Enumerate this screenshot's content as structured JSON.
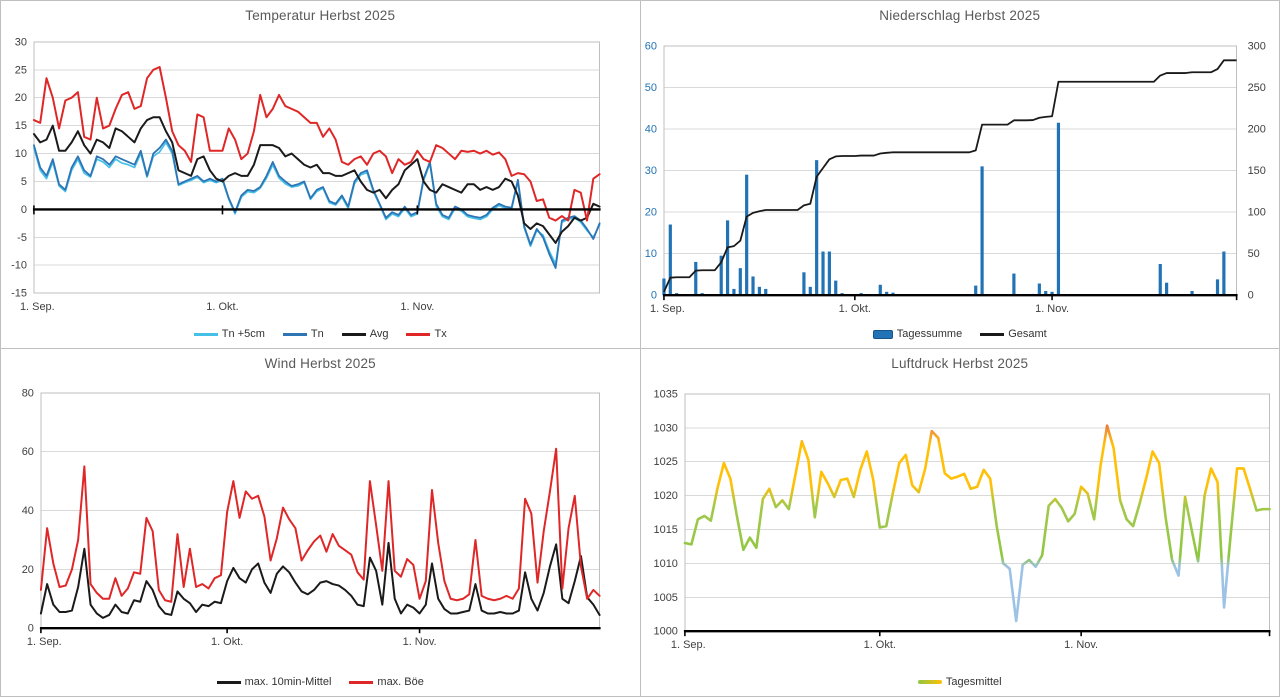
{
  "panels": {
    "temperature": {
      "title": "Temperatur Herbst 2025"
    },
    "precipitation": {
      "title": "Niederschlag Herbst 2025"
    },
    "wind": {
      "title": "Wind Herbst 2025"
    },
    "pressure": {
      "title": "Luftdruck Herbst 2025"
    }
  },
  "colors": {
    "tn5": "#45C1E8",
    "tn": "#2E75B6",
    "avg": "#1A1A1A",
    "tx": "#DF2727",
    "bar_blue": "#2273B5",
    "gesamt": "#1A1A1A",
    "wind_mean": "#1A1A1A",
    "wind_gust": "#DF2727",
    "pressure_green": "#8FC742",
    "pressure_yellow": "#FFC007",
    "pressure_blue": "#9CC2E5",
    "pressure_red": "#E2532F",
    "grid_line": "#D9D9D9",
    "spine": "#BFBFBF",
    "axis": "#000000",
    "axis_label": "#404040",
    "title_gray": "#595959"
  },
  "chart_data": [
    {
      "type": "line",
      "title": "Temperatur Herbst 2025",
      "n_days": 91,
      "ylim": [
        -15,
        30
      ],
      "ystep": 5,
      "axis_at": 0,
      "grid": true,
      "legend_position": "bottom",
      "x_tick_labels": [
        "1. Sep.",
        "1. Okt.",
        "1. Nov."
      ],
      "x_label_days": [
        0,
        30,
        61
      ],
      "x_tick_days": [
        0,
        30,
        61
      ],
      "series": [
        {
          "name": "Tn +5cm",
          "color": "#45C1E8",
          "width": 1.7,
          "values": [
            11,
            7,
            5.5,
            8.5,
            4.2,
            3.2,
            7,
            9,
            6.5,
            5.8,
            9,
            8.5,
            7.5,
            9,
            8.3,
            8,
            7.5,
            10,
            5.8,
            9.5,
            10.3,
            12,
            10,
            4.3,
            4.8,
            5.2,
            5.8,
            4.8,
            5.2,
            4.8,
            5.2,
            1.8,
            -0.8,
            2.2,
            3.2,
            3,
            3.8,
            5.6,
            8,
            5.6,
            4.6,
            4,
            4.2,
            4.8,
            1.8,
            3.2,
            3.8,
            1.2,
            0.8,
            2.2,
            0.2,
            4.6,
            6.2,
            6.6,
            3.2,
            0.8,
            -1.8,
            -0.8,
            -1.3,
            0.2,
            -1.3,
            -0.8,
            5.2,
            8.2,
            0.6,
            -1.3,
            -1.8,
            0.2,
            -0.3,
            -1.3,
            -1.6,
            -1.8,
            -1.3,
            0,
            0.7,
            0.2,
            0,
            5,
            -3.3,
            -6.6,
            -3.8,
            -4.6,
            -7.5,
            -9.8,
            -2.3,
            -1.8,
            -1.5,
            -2.3,
            -3.8,
            -5,
            -2.8
          ]
        },
        {
          "name": "Tn",
          "color": "#2E75B6",
          "width": 1.8,
          "values": [
            11.5,
            7.5,
            6,
            9,
            4.5,
            3.5,
            7.5,
            9.5,
            7,
            6,
            9.5,
            9,
            8,
            9.5,
            9,
            8.5,
            8,
            10.5,
            6,
            10,
            11,
            12.5,
            10.5,
            4.5,
            5,
            5.5,
            6,
            5,
            5.5,
            5,
            5.5,
            2,
            -0.5,
            2.5,
            3.5,
            3.3,
            4,
            6,
            8.5,
            6,
            5,
            4.2,
            4.5,
            5,
            2,
            3.5,
            4,
            1.5,
            1,
            2.5,
            0.5,
            5,
            6.5,
            7,
            3.5,
            1,
            -1.5,
            -0.5,
            -1,
            0.5,
            -1,
            -0.5,
            5.5,
            8.5,
            1,
            -1,
            -1.5,
            0.5,
            0,
            -1,
            -1.3,
            -1.5,
            -1,
            0.3,
            1,
            0.5,
            0.3,
            5.3,
            -3,
            -6.3,
            -3.5,
            -5,
            -8,
            -10.5,
            -2,
            -1.5,
            -1.2,
            -2,
            -3.5,
            -5.3,
            -2.5
          ]
        },
        {
          "name": "Avg",
          "color": "#1A1A1A",
          "width": 2,
          "values": [
            13.5,
            12,
            12.5,
            15,
            10.5,
            10.5,
            12,
            14,
            11.5,
            10,
            12.5,
            12,
            11,
            14.5,
            14,
            13,
            12,
            14.5,
            16,
            16.5,
            16.5,
            14,
            12,
            7,
            6.5,
            6,
            9,
            9.5,
            7,
            5.5,
            5,
            6,
            6.5,
            6,
            6,
            8,
            11.5,
            11.5,
            11.5,
            11,
            9.5,
            10,
            9,
            8,
            7.5,
            8,
            6.5,
            6.5,
            6,
            6,
            6.5,
            7,
            5,
            3.5,
            3,
            3.5,
            2,
            3.5,
            4.5,
            7,
            8,
            9,
            5,
            3.5,
            3,
            4.5,
            4,
            3.5,
            3,
            4.5,
            4.5,
            3.5,
            4,
            3.5,
            4,
            5.5,
            5,
            2.5,
            -2.5,
            -3.5,
            -2.5,
            -3,
            -4.5,
            -6,
            -4,
            -3,
            -1.5,
            -2,
            -1.5,
            1,
            0.5
          ]
        },
        {
          "name": "Tx",
          "color": "#DF2727",
          "width": 2,
          "values": [
            16,
            15.5,
            23.5,
            20,
            14.5,
            19.5,
            20,
            21,
            13,
            12.5,
            20,
            14.5,
            15,
            18,
            20.5,
            21,
            18,
            18.5,
            23.5,
            25,
            25.5,
            20,
            14,
            11.5,
            10.5,
            8.5,
            17,
            16.5,
            10.5,
            10.5,
            10.5,
            14.5,
            12.5,
            9,
            10,
            14,
            20.5,
            16.5,
            18,
            20.5,
            18.5,
            18,
            17.5,
            16.5,
            15.5,
            15.5,
            13,
            14.5,
            12.5,
            8.5,
            8,
            9,
            9.5,
            8,
            10,
            10.5,
            9.5,
            6.5,
            9,
            8,
            8.5,
            10.5,
            9,
            8.5,
            11.5,
            11,
            10,
            9,
            10.5,
            10.3,
            10.5,
            10,
            10.5,
            9.8,
            10.2,
            9,
            6,
            6.5,
            6.3,
            5,
            1.5,
            1.8,
            -1.5,
            -2,
            -1.2,
            -2,
            3.5,
            3,
            -2,
            5.5,
            6.3
          ]
        }
      ],
      "legend": [
        {
          "label": "Tn +5cm",
          "swatch": "line",
          "color": "#45C1E8"
        },
        {
          "label": "Tn",
          "swatch": "line",
          "color": "#2E75B6"
        },
        {
          "label": "Avg",
          "swatch": "line",
          "color": "#1A1A1A"
        },
        {
          "label": "Tx",
          "swatch": "line",
          "color": "#DF2727"
        }
      ]
    },
    {
      "type": "bar-line",
      "title": "Niederschlag Herbst 2025",
      "n_days": 91,
      "ylim": [
        0,
        60
      ],
      "ystep": 10,
      "axis_at": 0,
      "ylim_right": [
        0,
        300
      ],
      "ystep_right": 50,
      "yaxis_color": "#2273B5",
      "grid": true,
      "legend_position": "bottom",
      "x_tick_labels": [
        "1. Sep.",
        "1. Okt.",
        "1. Nov."
      ],
      "x_label_days": [
        0,
        30,
        61
      ],
      "x_tick_days": [
        0,
        30,
        61,
        90
      ],
      "bars": {
        "name": "Tagessumme",
        "color": "#2273B5",
        "values": [
          4,
          17,
          0.5,
          0,
          0,
          8,
          0.5,
          0,
          0,
          9.5,
          18,
          1.5,
          6.5,
          29,
          4.5,
          2,
          1.5,
          0,
          0,
          0,
          0,
          0,
          5.5,
          2,
          32.5,
          10.5,
          10.5,
          3.5,
          0.5,
          0,
          0,
          0.5,
          0,
          0,
          2.5,
          0.8,
          0.6,
          0,
          0,
          0,
          0,
          0,
          0,
          0,
          0,
          0,
          0,
          0,
          0,
          2.3,
          31,
          0,
          0,
          0,
          0,
          5.2,
          0,
          0,
          0.3,
          2.8,
          1,
          0.8,
          41.5,
          0,
          0,
          0,
          0,
          0,
          0,
          0,
          0,
          0,
          0,
          0,
          0,
          0,
          0,
          0,
          7.5,
          3,
          0,
          0,
          0,
          1,
          0,
          0,
          0,
          3.8,
          10.5,
          0,
          0
        ]
      },
      "cumulative": {
        "name": "Gesamt",
        "color": "#1A1A1A",
        "width": 1.8,
        "note": "running sum of Tagessumme, right axis"
      },
      "legend": [
        {
          "label": "Tagessumme",
          "swatch": "bar",
          "color": "#2273B5"
        },
        {
          "label": "Gesamt",
          "swatch": "line",
          "color": "#1A1A1A"
        }
      ]
    },
    {
      "type": "line",
      "title": "Wind Herbst 2025",
      "n_days": 91,
      "ylim": [
        0,
        80
      ],
      "ystep": 20,
      "axis_at": 0,
      "grid": true,
      "legend_position": "bottom",
      "x_tick_labels": [
        "1. Sep.",
        "1. Okt.",
        "1. Nov."
      ],
      "x_label_days": [
        0,
        30,
        61
      ],
      "x_tick_days": [
        0,
        30,
        61
      ],
      "series": [
        {
          "name": "max. 10min-Mittel",
          "color": "#1A1A1A",
          "width": 2,
          "values": [
            5,
            15,
            8,
            5.5,
            5.5,
            6,
            14,
            27,
            8,
            5,
            3.5,
            4.5,
            8,
            5.5,
            5,
            9.5,
            9,
            16,
            13,
            7.5,
            5,
            4.5,
            12.5,
            10,
            8.5,
            5.5,
            8,
            7.5,
            9,
            8.5,
            16,
            20.5,
            17,
            15.5,
            20,
            22,
            15.5,
            12,
            18.5,
            21,
            19,
            15.5,
            12.5,
            11.5,
            13,
            15.5,
            16,
            15,
            14.5,
            13,
            11,
            8,
            7.5,
            24,
            19.5,
            8,
            29,
            10,
            5,
            8,
            7,
            5,
            8,
            22,
            10,
            6.5,
            5,
            5,
            5.5,
            6,
            15,
            6,
            5,
            5,
            5.5,
            5,
            5,
            6,
            19,
            10,
            6,
            12,
            21,
            28.5,
            10,
            8.5,
            16,
            24.5,
            10.5,
            8,
            4.5
          ]
        },
        {
          "name": "max. Böe",
          "color": "#DF2727",
          "width": 2,
          "values": [
            13,
            34,
            22,
            14,
            14.5,
            20,
            30,
            55,
            15,
            12,
            10,
            10,
            17,
            11,
            13.5,
            19,
            18.5,
            37.5,
            33,
            13,
            9.5,
            9,
            32,
            14,
            27,
            14,
            15,
            13.5,
            17,
            18,
            39.5,
            50,
            37.5,
            46.5,
            44,
            45,
            38,
            23,
            30.5,
            41,
            37,
            34,
            23,
            26.5,
            29.5,
            31.5,
            26,
            32,
            28,
            26.5,
            25,
            19,
            16.5,
            50,
            35,
            19.5,
            50,
            19.5,
            17.5,
            23.5,
            21.5,
            10,
            16,
            47,
            29,
            16,
            10,
            9.5,
            10,
            11.5,
            30,
            11,
            10,
            9.5,
            10,
            11,
            10,
            13.5,
            44,
            39,
            15.5,
            33,
            46.5,
            61,
            13.5,
            34,
            45,
            21,
            10,
            13,
            11
          ]
        }
      ],
      "legend": [
        {
          "label": "max. 10min-Mittel",
          "swatch": "line",
          "color": "#1A1A1A"
        },
        {
          "label": "max. Böe",
          "swatch": "line",
          "color": "#DF2727"
        }
      ]
    },
    {
      "type": "line",
      "title": "Luftdruck Herbst 2025",
      "n_days": 91,
      "ylim": [
        1000,
        1035
      ],
      "ystep": 5,
      "axis_at": 1000,
      "grid": true,
      "legend_position": "bottom",
      "x_tick_labels": [
        "1. Sep.",
        "1. Okt.",
        "1. Nov."
      ],
      "x_label_days": [
        0,
        30,
        61
      ],
      "x_tick_days": [
        0,
        30,
        61,
        90
      ],
      "gradient_stops": [
        [
          1035,
          "#E2532F"
        ],
        [
          1031.5,
          "#E2532F"
        ],
        [
          1029.5,
          "#F09536"
        ],
        [
          1027.5,
          "#FFC007"
        ],
        [
          1021.5,
          "#FFC007"
        ],
        [
          1018.5,
          "#A3C84B"
        ],
        [
          1011,
          "#8FC742"
        ],
        [
          1009.5,
          "#9CC2E5"
        ],
        [
          1000,
          "#9CC2E5"
        ]
      ],
      "series": [
        {
          "name": "Tagesmittel",
          "gradient": true,
          "color": "#8FC742",
          "width": 2.6,
          "values": [
            1013,
            1012.8,
            1016.5,
            1017,
            1016.3,
            1021,
            1024.8,
            1022.5,
            1017,
            1012,
            1013.8,
            1012.3,
            1019.5,
            1021,
            1018.3,
            1019.3,
            1018,
            1023,
            1028,
            1025.3,
            1016.8,
            1023.5,
            1021.8,
            1019.8,
            1022.3,
            1022.5,
            1019.8,
            1023.8,
            1026.5,
            1022.3,
            1015.3,
            1015.5,
            1020.3,
            1024.8,
            1026,
            1021.5,
            1020.5,
            1024,
            1029.5,
            1028.5,
            1023.3,
            1022.5,
            1022.8,
            1023.2,
            1021,
            1021.3,
            1023.8,
            1022.5,
            1015.5,
            1010,
            1009.2,
            1001.5,
            1009.8,
            1010.5,
            1009.5,
            1011.2,
            1018.5,
            1019.5,
            1018.2,
            1016.2,
            1017.3,
            1021.3,
            1020.3,
            1016.5,
            1024.5,
            1030.3,
            1027,
            1019.3,
            1016.5,
            1015.5,
            1018.8,
            1022.5,
            1026.5,
            1024.8,
            1016.8,
            1010.5,
            1008.2,
            1019.8,
            1015,
            1010.3,
            1020,
            1024,
            1022,
            1003.5,
            1014,
            1024,
            1024,
            1021,
            1017.8,
            1018,
            1018
          ]
        }
      ],
      "legend": [
        {
          "label": "Tagesmittel",
          "swatch": "gradient",
          "color": "#8FC742",
          "color2": "#FFC007"
        }
      ]
    }
  ]
}
